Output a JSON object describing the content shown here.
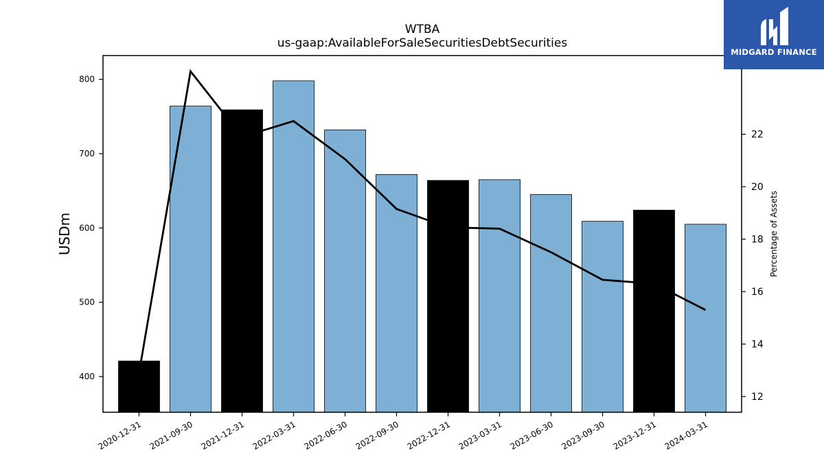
{
  "chart_data": {
    "type": "bar",
    "title": "WTBA",
    "subtitle": "us-gaap:AvailableForSaleSecuritiesDebtSecurities",
    "ylabel": "USDm",
    "y2label": "Percentage of Assets",
    "ylim": [
      352,
      832
    ],
    "y2lim": [
      11.4,
      25.0
    ],
    "yticks": [
      400,
      500,
      600,
      700,
      800
    ],
    "y2ticks": [
      12,
      14,
      16,
      18,
      20,
      22
    ],
    "categories": [
      "2020-12-31",
      "2021-09-30",
      "2021-12-31",
      "2022-03-31",
      "2022-06-30",
      "2022-09-30",
      "2022-12-31",
      "2023-03-31",
      "2023-06-30",
      "2023-09-30",
      "2023-12-31",
      "2024-03-31"
    ],
    "series": [
      {
        "type": "bar",
        "axis": "left",
        "values": [
          421,
          764,
          759,
          798,
          732,
          672,
          664,
          665,
          645,
          609,
          624,
          605
        ],
        "colors": [
          "#000000",
          "#7eb0d5",
          "#000000",
          "#7eb0d5",
          "#7eb0d5",
          "#7eb0d5",
          "#000000",
          "#7eb0d5",
          "#7eb0d5",
          "#7eb0d5",
          "#000000",
          "#7eb0d5"
        ]
      },
      {
        "type": "line",
        "axis": "right",
        "color": "#000000",
        "values": [
          12.9,
          24.4,
          21.9,
          22.5,
          21.05,
          19.15,
          18.45,
          18.4,
          17.5,
          16.45,
          16.3,
          15.3
        ]
      }
    ],
    "grid": false
  },
  "logo": {
    "text": "MIDGARD FINANCE",
    "background": "#2b58ab",
    "color": "#ffffff"
  }
}
